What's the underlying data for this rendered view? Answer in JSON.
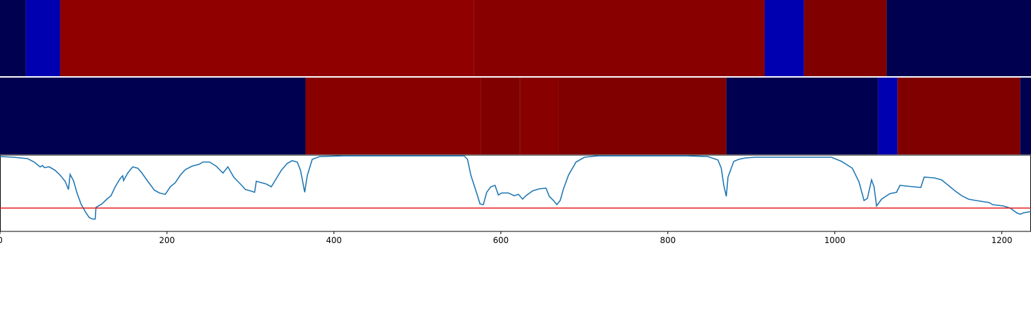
{
  "chart_data": {
    "type": "line",
    "strips": [
      {
        "edges": [
          0,
          31,
          72,
          568,
          916,
          963,
          1062,
          1235
        ],
        "colors": [
          "#000050",
          "#0000b0",
          "#900000",
          "#880000",
          "#0000b0",
          "#800000",
          "#000050"
        ]
      },
      {
        "edges": [
          0,
          366,
          576,
          623,
          669,
          870,
          1052,
          1075,
          1222,
          1235
        ],
        "colors": [
          "#000050",
          "#880000",
          "#800000",
          "#880000",
          "#800000",
          "#000050",
          "#0000b0",
          "#800000",
          "#000050"
        ]
      }
    ],
    "x": [
      0,
      16,
      33,
      41,
      48,
      51,
      53,
      59,
      66,
      72,
      78,
      82,
      84,
      88,
      92,
      97,
      103,
      107,
      111,
      114,
      115,
      122,
      128,
      133,
      138,
      144,
      147,
      148,
      153,
      159,
      165,
      170,
      177,
      185,
      191,
      198,
      204,
      210,
      216,
      222,
      230,
      239,
      243,
      251,
      259,
      267,
      273,
      280,
      288,
      294,
      300,
      305,
      307,
      313,
      319,
      325,
      331,
      337,
      344,
      350,
      356,
      360,
      365,
      368,
      374,
      383,
      412,
      494,
      556,
      560,
      564,
      568,
      572,
      575,
      579,
      583,
      588,
      593,
      597,
      601,
      609,
      616,
      621,
      626,
      630,
      638,
      646,
      654,
      658,
      663,
      667,
      671,
      675,
      681,
      690,
      700,
      716,
      823,
      848,
      860,
      864,
      867,
      870,
      872,
      879,
      885,
      893,
      905,
      947,
      996,
      1008,
      1021,
      1029,
      1035,
      1039,
      1044,
      1047,
      1050,
      1056,
      1066,
      1074,
      1078,
      1086,
      1103,
      1107,
      1119,
      1128,
      1136,
      1144,
      1152,
      1160,
      1169,
      1185,
      1189,
      1202,
      1210,
      1218,
      1222,
      1226,
      1235
    ],
    "series": [
      {
        "color": "#1f77b4",
        "values": [
          109,
          108,
          106,
          101,
          94,
          96,
          93,
          94,
          89,
          82,
          73,
          61,
          83,
          74,
          57,
          40,
          27,
          20,
          18,
          18,
          35,
          40,
          47,
          52,
          65,
          77,
          81,
          74,
          85,
          94,
          92,
          85,
          73,
          60,
          56,
          54,
          65,
          71,
          82,
          90,
          95,
          98,
          101,
          101,
          95,
          85,
          94,
          79,
          69,
          61,
          59,
          57,
          73,
          71,
          69,
          65,
          77,
          89,
          99,
          103,
          101,
          89,
          57,
          81,
          105,
          109,
          110,
          110,
          110,
          105,
          82,
          67,
          52,
          40,
          39,
          57,
          65,
          67,
          53,
          56,
          56,
          52,
          54,
          47,
          52,
          59,
          62,
          63,
          51,
          45,
          39,
          45,
          62,
          82,
          101,
          108,
          110,
          110,
          109,
          104,
          92,
          67,
          51,
          79,
          102,
          105,
          107,
          108,
          108,
          108,
          102,
          92,
          72,
          45,
          48,
          75,
          65,
          37,
          47,
          55,
          57,
          67,
          66,
          64,
          79,
          78,
          75,
          67,
          59,
          52,
          47,
          45,
          42,
          39,
          37,
          34,
          27,
          25,
          27,
          29
        ]
      }
    ],
    "threshold": {
      "value": 34,
      "color": "#e41a1c"
    },
    "xlim": [
      0,
      1235
    ],
    "ylim": [
      0,
      111
    ],
    "xticks": [
      0,
      200,
      400,
      600,
      800,
      1000,
      1200
    ]
  }
}
